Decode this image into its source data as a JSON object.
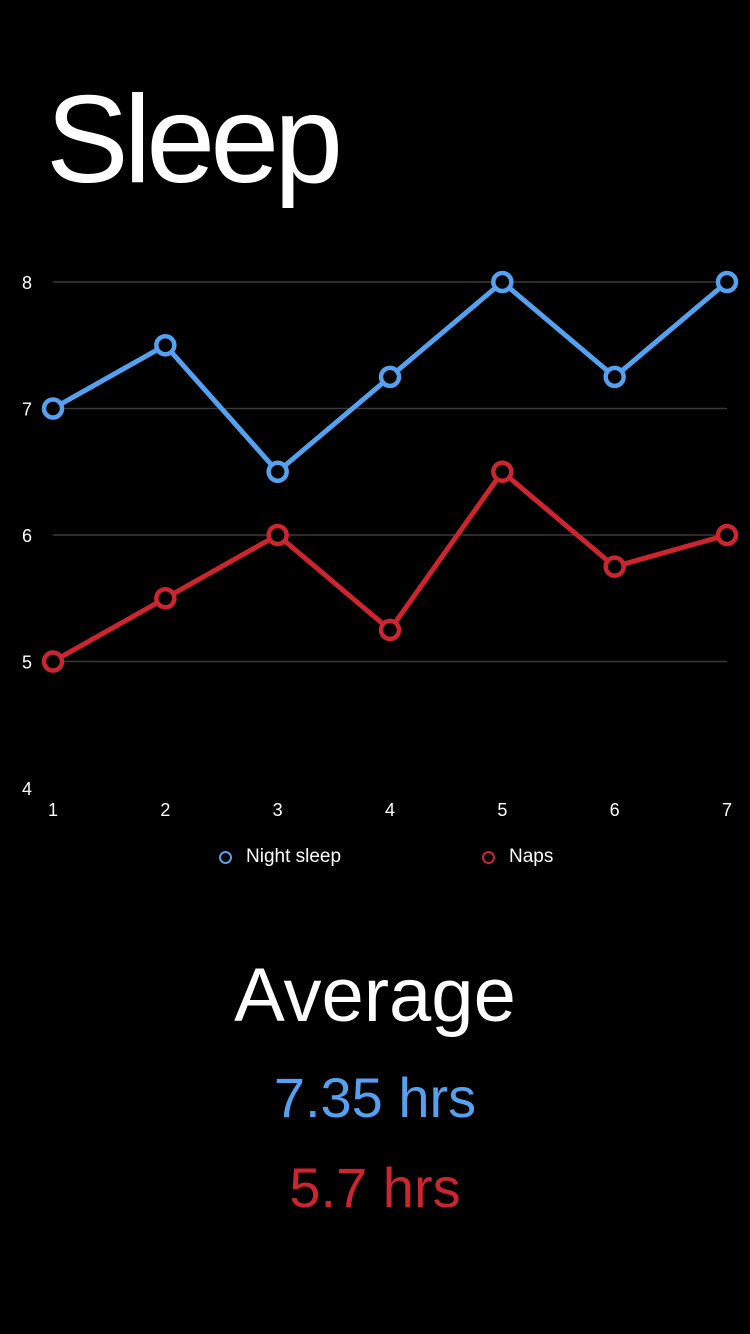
{
  "header": {
    "title": "Sleep"
  },
  "chart_data": {
    "type": "line",
    "x": [
      1,
      2,
      3,
      4,
      5,
      6,
      7
    ],
    "series": [
      {
        "name": "Night sleep",
        "values": [
          7,
          7.5,
          6.5,
          7.25,
          8,
          7.25,
          8
        ],
        "color": "#55a0ef"
      },
      {
        "name": "Naps",
        "values": [
          5,
          5.5,
          6,
          5.25,
          6.5,
          5.75,
          6
        ],
        "color": "#cc2530"
      }
    ],
    "yticks": [
      4,
      5,
      6,
      7,
      8
    ],
    "ylim": [
      4,
      8
    ],
    "xlim": [
      1,
      7
    ],
    "grid": true,
    "legend": "bottom",
    "title": "",
    "xlabel": "",
    "ylabel": ""
  },
  "summary": {
    "title": "Average",
    "night_value": "7.35 hrs",
    "naps_value": "5.7 hrs"
  },
  "colors": {
    "background": "#000000",
    "night": "#55a0ef",
    "naps": "#cc2530",
    "grid": "#3a3a3a",
    "text": "#ffffff"
  }
}
